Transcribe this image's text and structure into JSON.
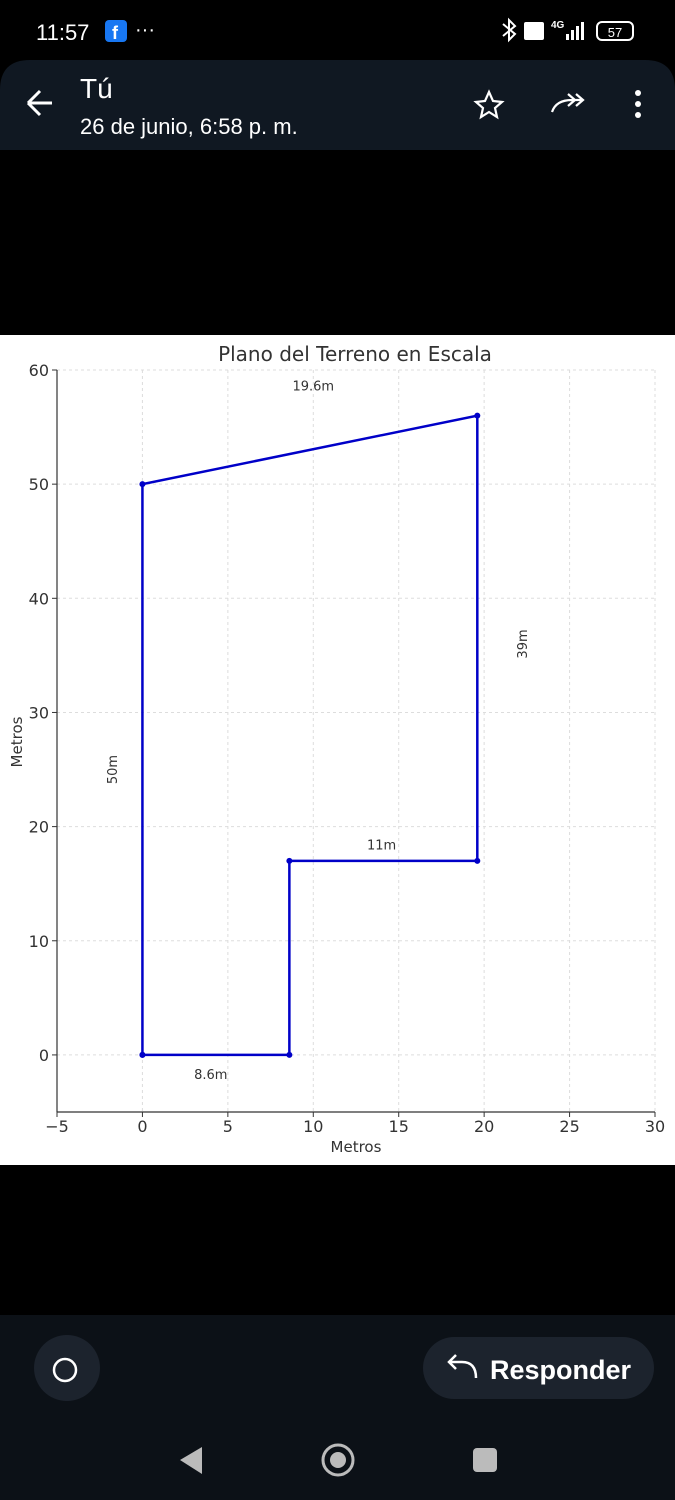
{
  "status_bar": {
    "time": "11:57",
    "battery": "57"
  },
  "header": {
    "title": "Tú",
    "subtitle": "26 de junio, 6:58 p. m."
  },
  "chart_data": {
    "type": "line",
    "title": "Plano del Terreno en Escala",
    "x_label": "Metros",
    "y_label": "Metros",
    "x": [
      0,
      8.6,
      8.6,
      19.6,
      19.6,
      0,
      0
    ],
    "series": [
      {
        "color": "#0000c8",
        "values": [
          0,
          0,
          17,
          17,
          56,
          50,
          0
        ]
      }
    ],
    "xlim": [
      -5,
      30
    ],
    "ylim": [
      -5,
      60
    ],
    "xticks": [
      {
        "value": -5,
        "label": "−5"
      },
      0,
      5,
      10,
      15,
      20,
      25,
      30
    ],
    "yticks": [
      0,
      10,
      20,
      30,
      40,
      50,
      60
    ],
    "grid": true,
    "annotations": [
      {
        "text": "19.6m",
        "x": 10,
        "y": 58.5,
        "rotation": 0
      },
      {
        "text": "50m",
        "x": -1.7,
        "y": 25,
        "rotation": -90
      },
      {
        "text": "39m",
        "x": 22.3,
        "y": 36,
        "rotation": -90
      },
      {
        "text": "11m",
        "x": 14,
        "y": 18.3,
        "rotation": 0
      },
      {
        "text": "8.6m",
        "x": 4,
        "y": -1.8,
        "rotation": 0
      }
    ]
  },
  "footer": {
    "reply": "Responder"
  }
}
